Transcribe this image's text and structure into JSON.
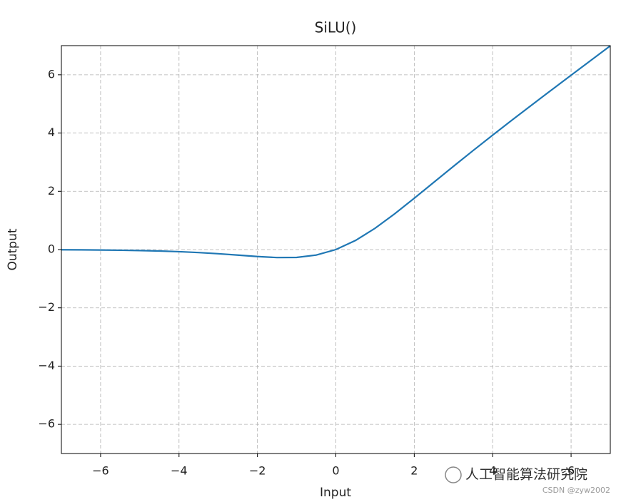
{
  "chart_data": {
    "type": "line",
    "title": "SiLU()",
    "x_label": "Input",
    "y_label": "Output",
    "x": [
      -7,
      -6.5,
      -6,
      -5.5,
      -5,
      -4.5,
      -4,
      -3.5,
      -3,
      -2.5,
      -2,
      -1.5,
      -1,
      -0.5,
      0,
      0.5,
      1,
      1.5,
      2,
      2.5,
      3,
      3.5,
      4,
      4.5,
      5,
      5.5,
      6,
      6.5,
      7
    ],
    "values": [
      -0.00638,
      -0.00976,
      -0.01484,
      -0.02239,
      -0.03347,
      -0.04944,
      -0.07194,
      -0.1026,
      -0.1423,
      -0.1897,
      -0.2384,
      -0.2736,
      -0.2689,
      -0.1888,
      0,
      0.3112,
      0.7311,
      1.2264,
      1.7616,
      2.3103,
      2.8577,
      3.3974,
      3.9281,
      4.4506,
      4.9665,
      5.4776,
      5.9852,
      6.4902,
      6.9936
    ],
    "color": "#1f77b4",
    "xlim": [
      -7,
      7
    ],
    "ylim": [
      -7,
      7
    ],
    "xticks": [
      {
        "value": -6,
        "label": "−6"
      },
      {
        "value": -4,
        "label": "−4"
      },
      {
        "value": -2,
        "label": "−2"
      },
      0,
      2,
      4,
      6
    ],
    "yticks": [
      {
        "value": -6,
        "label": "−6"
      },
      {
        "value": -4,
        "label": "−4"
      },
      {
        "value": -2,
        "label": "−2"
      },
      0,
      2,
      4,
      6
    ],
    "grid": true,
    "watermark": "人工智能算法研究院",
    "credit": "CSDN @zyw2002"
  }
}
